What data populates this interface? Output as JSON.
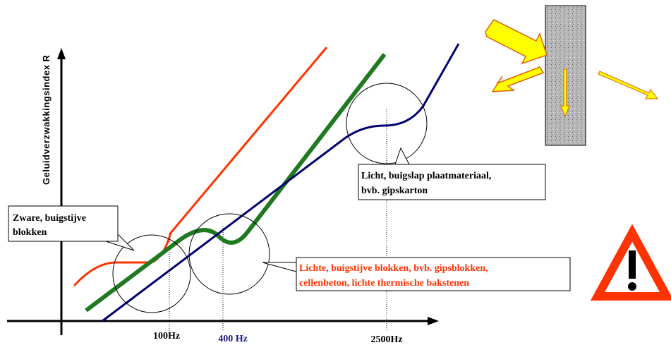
{
  "axis": {
    "y_label": "Geluidverzwakkingsindex R",
    "x_labels": [
      "100Hz",
      "400 Hz",
      "2500Hz"
    ]
  },
  "callouts": [
    {
      "lines": [
        "Zware, buigstijve",
        "blokken"
      ]
    },
    {
      "lines": [
        "Licht, buigslap plaatmateriaal,",
        "bvb. gipskarton"
      ]
    },
    {
      "lines": [
        "Lichte, buigstijve blokken, bvb. gipsblokken,",
        "cellenbeton, lichte thermische bakstenen"
      ]
    }
  ]
}
